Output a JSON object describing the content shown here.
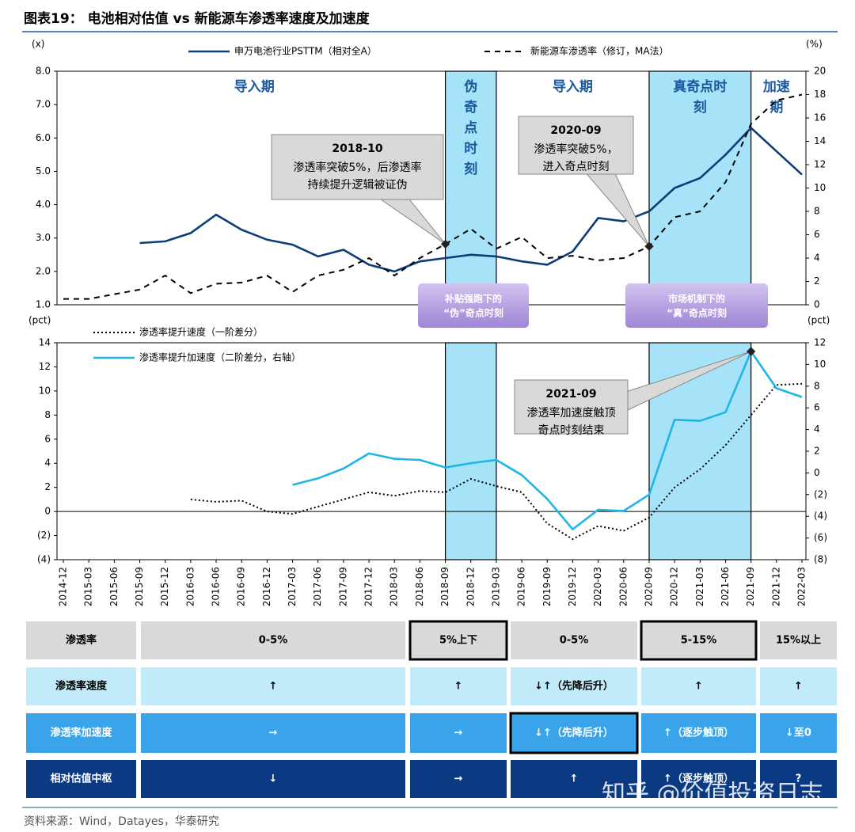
{
  "title": "图表19：  电池相对估值 vs 新能源车渗透率速度及加速度",
  "chart_data": {
    "type": "line",
    "categories": [
      "2014-12",
      "2015-03",
      "2015-06",
      "2015-09",
      "2015-12",
      "2016-03",
      "2016-06",
      "2016-09",
      "2016-12",
      "2017-03",
      "2017-06",
      "2017-09",
      "2017-12",
      "2018-03",
      "2018-06",
      "2018-09",
      "2018-12",
      "2019-03",
      "2019-06",
      "2019-09",
      "2019-12",
      "2020-03",
      "2020-06",
      "2020-09",
      "2020-12",
      "2021-03",
      "2021-06",
      "2021-09",
      "2021-12",
      "2022-03"
    ],
    "band_color": "#a6e3f8",
    "phases": [
      {
        "label": [
          "导入期"
        ],
        "from": "2014-12",
        "to": "2018-09"
      },
      {
        "label": [
          "伪",
          "奇",
          "点",
          "时",
          "刻"
        ],
        "from": "2018-09",
        "to": "2019-03",
        "shaded": true
      },
      {
        "label": [
          "导入期"
        ],
        "from": "2019-03",
        "to": "2020-09"
      },
      {
        "label": [
          "真奇点时",
          "刻"
        ],
        "from": "2020-09",
        "to": "2021-09",
        "shaded": true
      },
      {
        "label": [
          "加速",
          "期"
        ],
        "from": "2021-09",
        "to": "2022-03"
      }
    ],
    "panels": [
      {
        "y_unit": "(x)",
        "y2_unit": "(%)",
        "ylim": [
          1,
          8
        ],
        "yticks": [
          {
            "value": 1,
            "label": "1.0"
          },
          {
            "value": 2,
            "label": "2.0"
          },
          {
            "value": 3,
            "label": "3.0"
          },
          {
            "value": 4,
            "label": "4.0"
          },
          {
            "value": 5,
            "label": "5.0"
          },
          {
            "value": 6,
            "label": "6.0"
          },
          {
            "value": 7,
            "label": "7.0"
          },
          {
            "value": 8,
            "label": "8.0"
          }
        ],
        "y2lim": [
          0,
          20
        ],
        "y2ticks": [
          0,
          2,
          4,
          6,
          8,
          10,
          12,
          14,
          16,
          18,
          20
        ],
        "series": [
          {
            "name": "申万电池行业PSTTM（相对全A）",
            "color": "#0d3d78",
            "style": "solid",
            "values": [
              null,
              null,
              null,
              2.85,
              2.9,
              3.15,
              3.7,
              3.25,
              2.95,
              2.8,
              2.45,
              2.65,
              2.2,
              2.0,
              2.3,
              2.4,
              2.5,
              2.45,
              2.3,
              2.2,
              2.6,
              3.6,
              3.5,
              3.8,
              4.5,
              4.8,
              5.5,
              6.3,
              5.6,
              4.9
            ]
          },
          {
            "name": "新能源车渗透率（修订，MA法）",
            "color": "#000000",
            "style": "dashed",
            "axis": "y2",
            "values": [
              0.5,
              0.5,
              0.9,
              1.3,
              2.5,
              1.0,
              1.8,
              1.9,
              2.5,
              1.1,
              2.5,
              3.0,
              4.0,
              2.5,
              4.0,
              5.2,
              6.5,
              4.8,
              5.8,
              4.0,
              4.2,
              3.8,
              4.0,
              5.0,
              7.5,
              8.0,
              10.5,
              15.5,
              17.5,
              18.0
            ]
          }
        ]
      },
      {
        "y_unit": "(pct)",
        "y2_unit": "(pct)",
        "ylim": [
          -4,
          14
        ],
        "yticks": [
          {
            "value": -4,
            "label": "(4)"
          },
          {
            "value": -2,
            "label": "(2)"
          },
          0,
          2,
          4,
          6,
          8,
          10,
          12,
          14
        ],
        "y2lim": [
          -8,
          12
        ],
        "y2ticks": [
          {
            "value": -8,
            "label": "(8)"
          },
          {
            "value": -6,
            "label": "(6)"
          },
          {
            "value": -4,
            "label": "(4)"
          },
          {
            "value": -2,
            "label": "(2)"
          },
          0,
          2,
          4,
          6,
          8,
          10,
          12
        ],
        "series": [
          {
            "name": "渗透率提升速度（一阶差分）",
            "color": "#000000",
            "style": "dotted",
            "values": [
              null,
              null,
              null,
              null,
              null,
              1.0,
              0.8,
              0.9,
              0.0,
              -0.2,
              0.4,
              1.0,
              1.6,
              1.3,
              1.7,
              1.6,
              2.7,
              2.1,
              1.6,
              -1.0,
              -2.3,
              -1.2,
              -1.6,
              -0.5,
              2.0,
              3.5,
              5.5,
              8.0,
              10.5,
              10.6
            ]
          },
          {
            "name": "渗透率提升加速度（二阶差分，右轴）",
            "color": "#1fb5e6",
            "style": "solid",
            "axis": "y2",
            "values": [
              null,
              null,
              null,
              null,
              null,
              null,
              null,
              null,
              null,
              -1.1,
              -0.5,
              0.4,
              1.8,
              1.3,
              1.2,
              0.5,
              0.9,
              1.2,
              -0.2,
              -2.4,
              -5.2,
              -3.4,
              -3.5,
              -2.0,
              4.9,
              4.8,
              5.6,
              11.2,
              7.8,
              7.0
            ]
          }
        ]
      }
    ],
    "annotations": [
      {
        "title": "2018-10",
        "lines": [
          "渗透率突破5%，后渗透率",
          "持续提升逻辑被证伪"
        ],
        "panel": 0,
        "series": 1,
        "at": "2018-09"
      },
      {
        "title": "2020-09",
        "lines": [
          "渗透率突破5%，",
          "进入奇点时刻"
        ],
        "panel": 0,
        "series": 1,
        "at": "2020-09"
      },
      {
        "title": "2021-09",
        "lines": [
          "渗透率加速度触顶",
          "奇点时刻结束"
        ],
        "panel": 1,
        "series": 1,
        "at": "2021-09"
      }
    ],
    "notes": [
      {
        "lines": [
          "补贴强跑下的",
          "“伪”奇点时刻"
        ]
      },
      {
        "lines": [
          "市场机制下的",
          "“真”奇点时刻"
        ]
      }
    ]
  },
  "table": {
    "rows": [
      {
        "header": "渗透率",
        "cells": [
          "0-5%",
          "5%上下",
          "0-5%",
          "5-15%",
          "15%以上"
        ],
        "outlined": [
          1,
          3
        ]
      },
      {
        "header": "渗透率速度",
        "cells": [
          "↑",
          "↑",
          "↓↑（先降后升）",
          "↑",
          "↑"
        ],
        "outlined": []
      },
      {
        "header": "渗透率加速度",
        "cells": [
          "→",
          "→",
          "↓↑（先降后升）",
          "↑（逐步触顶）",
          "↓至0"
        ],
        "outlined": [
          2
        ]
      },
      {
        "header": "相对估值中枢",
        "cells": [
          "↓",
          "→",
          "↑",
          "↑（逐步触顶）",
          "?"
        ],
        "outlined": []
      }
    ]
  },
  "watermark": "知乎 @价值投资日志",
  "source": "资料来源：Wind，Datayes，华泰研究"
}
